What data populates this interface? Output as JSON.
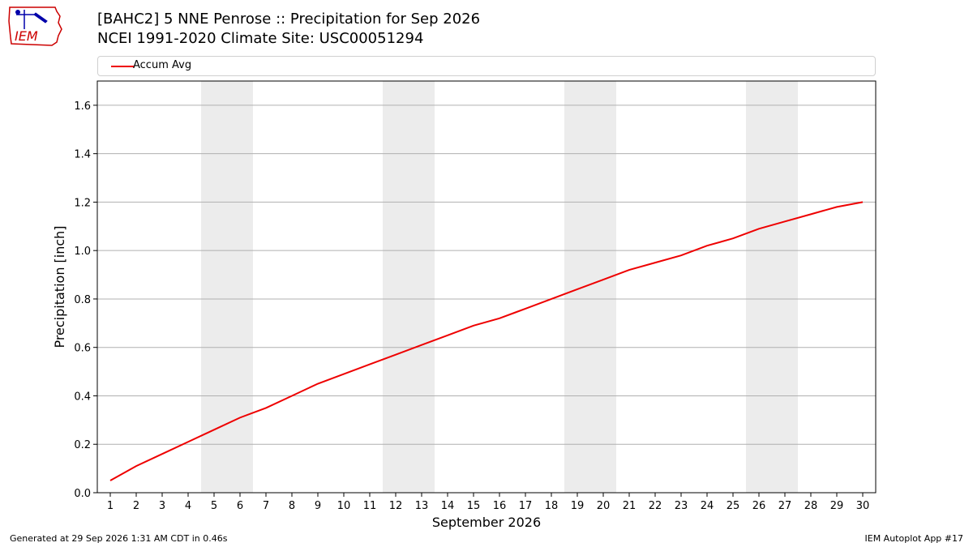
{
  "header": {
    "title_line1": "[BAHC2] 5 NNE Penrose :: Precipitation for Sep 2026",
    "title_line2": "NCEI 1991-2020 Climate Site: USC00051294"
  },
  "logo": {
    "text": "IEM",
    "colors": {
      "outline": "#cc0000",
      "text": "#cc0000",
      "mark": "#0000aa"
    }
  },
  "footer": {
    "generated": "Generated at 29 Sep 2026 1:31 AM CDT in 0.46s",
    "app": "IEM Autoplot App #17"
  },
  "chart_data": {
    "type": "line",
    "xlabel": "September 2026",
    "ylabel": "Precipitation [inch]",
    "ylim": [
      0,
      1.7
    ],
    "xlim": [
      0.5,
      30.5
    ],
    "yticks": [
      "0.0",
      "0.2",
      "0.4",
      "0.6",
      "0.8",
      "1.0",
      "1.2",
      "1.4",
      "1.6"
    ],
    "x": [
      1,
      2,
      3,
      4,
      5,
      6,
      7,
      8,
      9,
      10,
      11,
      12,
      13,
      14,
      15,
      16,
      17,
      18,
      19,
      20,
      21,
      22,
      23,
      24,
      25,
      26,
      27,
      28,
      29,
      30
    ],
    "weekend_shading": [
      [
        4.5,
        6.5
      ],
      [
        11.5,
        13.5
      ],
      [
        18.5,
        20.5
      ],
      [
        25.5,
        27.5
      ]
    ],
    "grid": "horizontal",
    "legend_position": "top",
    "series": [
      {
        "name": "Accum Avg",
        "color": "#ee0000",
        "values": [
          0.05,
          0.11,
          0.16,
          0.21,
          0.26,
          0.31,
          0.35,
          0.4,
          0.45,
          0.49,
          0.53,
          0.57,
          0.61,
          0.65,
          0.69,
          0.72,
          0.76,
          0.8,
          0.84,
          0.88,
          0.92,
          0.95,
          0.98,
          1.02,
          1.05,
          1.09,
          1.12,
          1.15,
          1.18,
          1.2
        ]
      }
    ]
  }
}
